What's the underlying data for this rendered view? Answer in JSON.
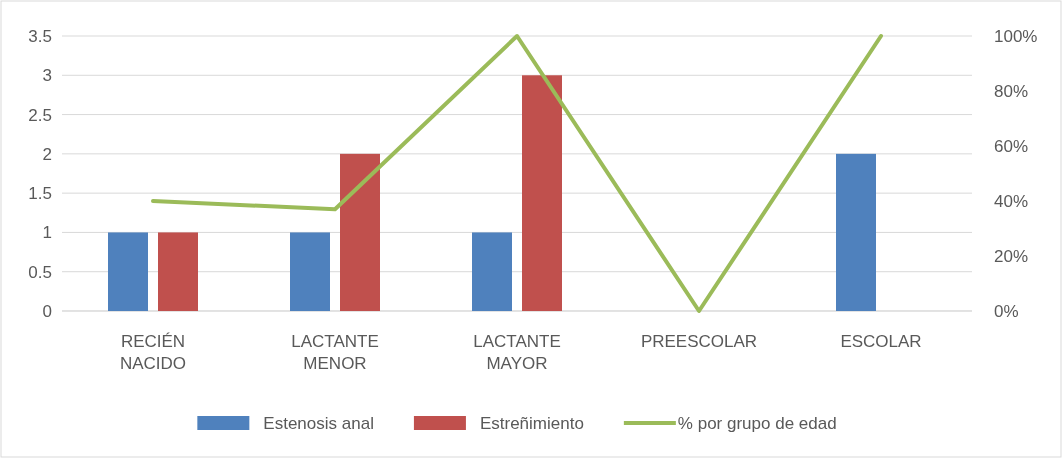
{
  "chart_data": {
    "type": "bar",
    "categories": [
      "RECIÉN NACIDO",
      "LACTANTE MENOR",
      "LACTANTE MAYOR",
      "PREESCOLAR",
      "ESCOLAR"
    ],
    "series": [
      {
        "name": "Estenosis anal",
        "color": "#4f81bd",
        "values": [
          1,
          1,
          1,
          0,
          2
        ]
      },
      {
        "name": "Estreñimiento",
        "color": "#c0504d",
        "values": [
          1,
          2,
          3,
          0,
          0
        ]
      },
      {
        "name": "% por grupo de edad",
        "type": "line",
        "axis": "y2",
        "color": "#9bbb59",
        "values": [
          40,
          37,
          100,
          0,
          100
        ]
      }
    ],
    "ylim": [
      0,
      3.5
    ],
    "yticks": [
      0,
      0.5,
      1,
      1.5,
      2,
      2.5,
      3,
      3.5
    ],
    "y2lim": [
      0,
      100
    ],
    "y2ticks": [
      {
        "value": 0,
        "label": "0%"
      },
      {
        "value": 20,
        "label": "20%"
      },
      {
        "value": 40,
        "label": "40%"
      },
      {
        "value": 60,
        "label": "60%"
      },
      {
        "value": 80,
        "label": "80%"
      },
      {
        "value": 100,
        "label": "100%"
      }
    ],
    "grid": "y",
    "legend": "bottom"
  }
}
